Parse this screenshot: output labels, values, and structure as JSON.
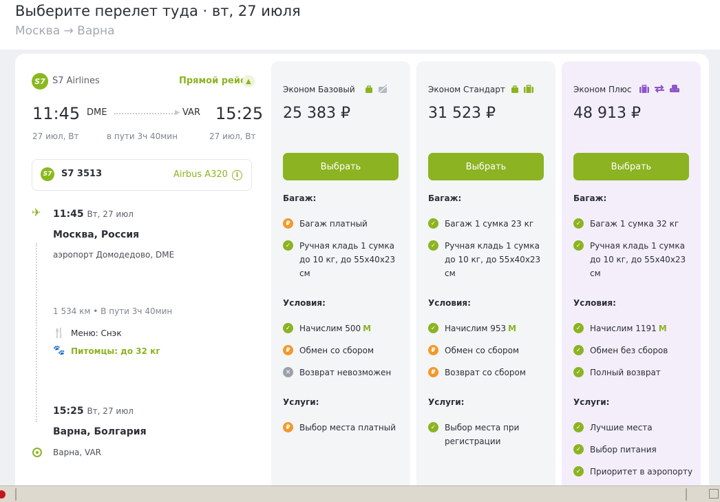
{
  "header": {
    "title": "Выберите перелет туда · вт, 27 июля",
    "route": "Москва → Варна"
  },
  "flight": {
    "airline": "S7 Airlines",
    "logo_text": "S7",
    "direct_label": "Прямой рейс",
    "dep_time": "11:45",
    "dep_code": "DME",
    "arr_code": "VAR",
    "arr_time": "15:25",
    "dep_date": "27 июл, Вт",
    "duration": "в пути 3ч 40мин",
    "arr_date": "27 июл, Вт",
    "flight_number": "S7 3513",
    "aircraft": "Airbus A320",
    "segment": {
      "dep_time": "11:45",
      "dep_date": "Вт, 27 июл",
      "dep_city": "Москва, Россия",
      "dep_airport": "аэропорт Домодедово, DME",
      "distance": "1 534 км • В пути 3ч 40мин",
      "meal": "Меню: Снэк",
      "pets": "Питомцы: до 32 кг",
      "arr_time": "15:25",
      "arr_date": "Вт, 27 июл",
      "arr_city": "Варна, Болгария",
      "arr_airport": "Варна, VAR"
    }
  },
  "fares": [
    {
      "name": "Эконом Базовый",
      "price": "25 383 ₽",
      "button": "Выбрать",
      "baggage_title": "Багаж:",
      "baggage": [
        {
          "status": "paid",
          "text": "Багаж платный"
        },
        {
          "status": "ok",
          "text": "Ручная кладь 1 сумка до 10 кг, до 55х40х23 см"
        }
      ],
      "conditions_title": "Условия:",
      "conditions": [
        {
          "status": "ok",
          "text": "Начислим 500",
          "miles": "M"
        },
        {
          "status": "paid",
          "text": "Обмен со сбором"
        },
        {
          "status": "no",
          "text": "Возврат невозможен"
        }
      ],
      "services_title": "Услуги:",
      "services": [
        {
          "status": "paid",
          "text": "Выбор места платный"
        }
      ]
    },
    {
      "name": "Эконом Стандарт",
      "price": "31 523 ₽",
      "button": "Выбрать",
      "baggage_title": "Багаж:",
      "baggage": [
        {
          "status": "ok",
          "text": "Багаж 1 сумка 23 кг"
        },
        {
          "status": "ok",
          "text": "Ручная кладь 1 сумка до 10 кг, до 55х40х23 см"
        }
      ],
      "conditions_title": "Условия:",
      "conditions": [
        {
          "status": "ok",
          "text": "Начислим 953",
          "miles": "M"
        },
        {
          "status": "paid",
          "text": "Обмен со сбором"
        },
        {
          "status": "paid",
          "text": "Возврат со сбором"
        }
      ],
      "services_title": "Услуги:",
      "services": [
        {
          "status": "ok",
          "text": "Выбор места при регистрации"
        }
      ]
    },
    {
      "name": "Эконом Плюс",
      "price": "48 913 ₽",
      "button": "Выбрать",
      "baggage_title": "Багаж:",
      "baggage": [
        {
          "status": "ok",
          "text": "Багаж 1 сумка 32 кг"
        },
        {
          "status": "ok",
          "text": "Ручная кладь 1 сумка до 10 кг, до 55х40х23 см"
        }
      ],
      "conditions_title": "Условия:",
      "conditions": [
        {
          "status": "ok",
          "text": "Начислим 1191",
          "miles": "M"
        },
        {
          "status": "ok",
          "text": "Обмен без сборов"
        },
        {
          "status": "ok",
          "text": "Полный возврат"
        }
      ],
      "services_title": "Услуги:",
      "services": [
        {
          "status": "ok",
          "text": "Лучшие места"
        },
        {
          "status": "ok",
          "text": "Выбор питания"
        },
        {
          "status": "ok",
          "text": "Приоритет в аэропорту"
        }
      ]
    }
  ],
  "colors": {
    "brand_green": "#8cb321",
    "paid_orange": "#f2992b",
    "plus_bg": "#f4eefb",
    "plus_icon": "#8e57c9"
  },
  "icons": {
    "fare0": [
      "bag-icon",
      "no-bag-icon"
    ],
    "fare1": [
      "bag-icon",
      "suitcase-icon"
    ],
    "fare2": [
      "suitcase-icon",
      "exchange-icon",
      "seat-icon"
    ]
  }
}
